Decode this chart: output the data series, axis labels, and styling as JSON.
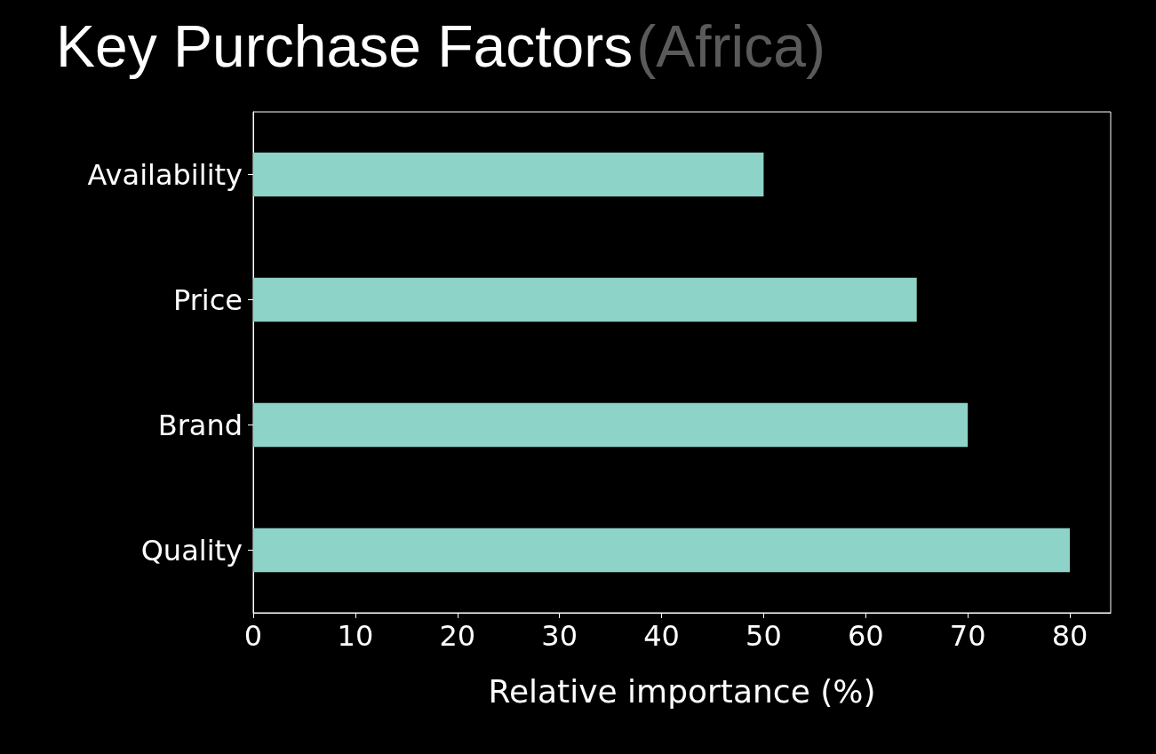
{
  "chart_data": {
    "type": "bar",
    "orientation": "horizontal",
    "title": "Key Purchase Factors",
    "subtitle": "(Africa)",
    "xlabel": "Relative importance (%)",
    "categories": [
      "Availability",
      "Price",
      "Brand",
      "Quality"
    ],
    "values": [
      50,
      65,
      70,
      80
    ],
    "color": "#8dd3c7",
    "xlim": [
      0,
      84
    ],
    "xticks": [
      0,
      10,
      20,
      30,
      40,
      50,
      60,
      70,
      80
    ],
    "grid": false
  }
}
